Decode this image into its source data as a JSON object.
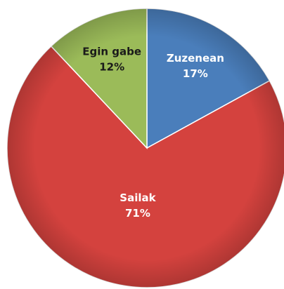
{
  "chart_data": {
    "type": "pie",
    "categories": [
      "Zuzenean",
      "Sailak",
      "Egin gabe"
    ],
    "values": [
      17,
      71,
      12
    ],
    "value_labels": [
      "17%",
      "71%",
      "12%"
    ],
    "colors": [
      "#4a7ebb",
      "#d4423e",
      "#9bbb59"
    ],
    "label_colors": [
      "#ffffff",
      "#ffffff",
      "#1a1a1a"
    ]
  }
}
